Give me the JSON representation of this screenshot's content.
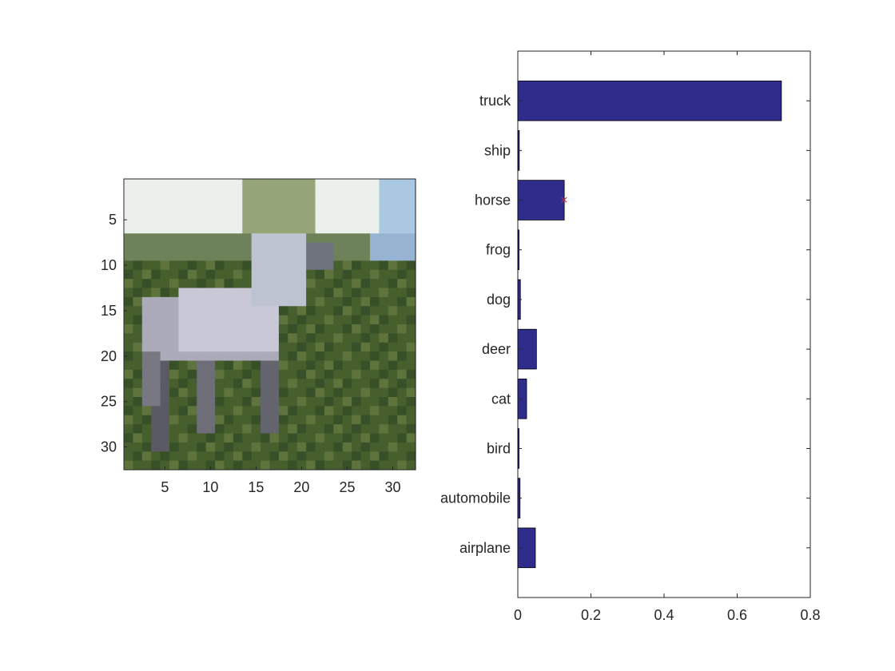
{
  "image_axes": {
    "description_ticks": true,
    "xticks": [
      5,
      10,
      15,
      20,
      25,
      30
    ],
    "yticks": [
      5,
      10,
      15,
      20,
      25,
      30
    ],
    "xlim": [
      0.5,
      32.5
    ],
    "ylim": [
      0.5,
      32.5
    ],
    "image_icon": "horse-photo"
  },
  "chart_data": {
    "type": "bar",
    "orientation": "horizontal",
    "categories": [
      "airplane",
      "automobile",
      "bird",
      "cat",
      "deer",
      "dog",
      "frog",
      "horse",
      "ship",
      "truck"
    ],
    "values": [
      0.048,
      0.006,
      0.002,
      0.024,
      0.051,
      0.007,
      0.002,
      0.127,
      0.004,
      0.721
    ],
    "xlim": [
      0,
      0.8
    ],
    "ylim": [
      0,
      11
    ],
    "xticks": [
      "0",
      "0.2",
      "0.4",
      "0.6",
      "0.8"
    ],
    "marker": {
      "category": "horse",
      "value": 0.127,
      "symbol": "×",
      "color": "#c0304a"
    },
    "bar_color": "#302c8c",
    "title": "",
    "xlabel": "",
    "ylabel": "",
    "grid": false
  }
}
